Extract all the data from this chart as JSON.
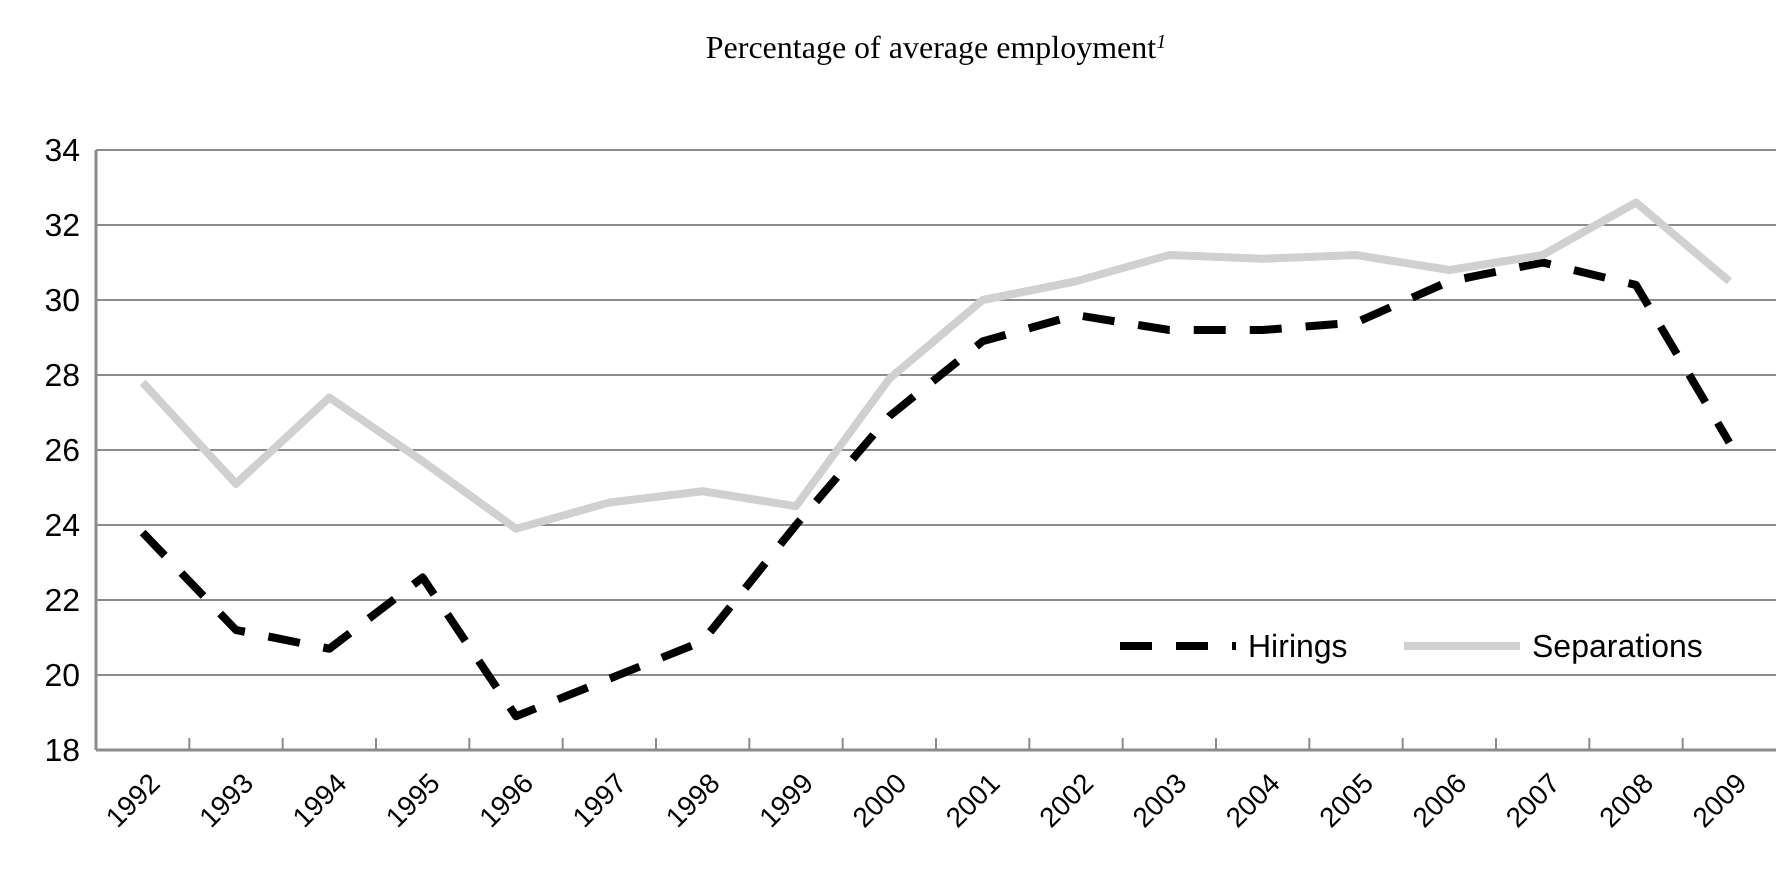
{
  "chart_data": {
    "type": "line",
    "title": "Percentage of average employment$^{1}$",
    "categories": [
      "1992",
      "1993",
      "1994",
      "1995",
      "1996",
      "1997",
      "1998",
      "1999",
      "2000",
      "2001",
      "2002",
      "2003",
      "2004",
      "2005",
      "2006",
      "2007",
      "2008",
      "2009"
    ],
    "series": [
      {
        "name": "Hirings",
        "color": "#000000",
        "line_style": "dashed",
        "values": [
          23.8,
          21.2,
          20.7,
          22.6,
          18.9,
          19.9,
          20.9,
          24.0,
          26.9,
          28.9,
          29.6,
          29.2,
          29.2,
          29.4,
          30.5,
          31.0,
          30.4,
          26.2
        ]
      },
      {
        "name": "Separations",
        "color": "#d0d0d0",
        "line_style": "solid",
        "values": [
          27.8,
          25.1,
          27.4,
          25.7,
          23.9,
          24.6,
          24.9,
          24.5,
          27.9,
          30.0,
          30.5,
          31.2,
          31.1,
          31.2,
          30.8,
          31.2,
          32.6,
          30.5
        ]
      }
    ],
    "ylim": [
      18,
      34
    ],
    "yticks": [
      18,
      20,
      22,
      24,
      26,
      28,
      30,
      32,
      34
    ],
    "grid": "y",
    "legend": "bottom right",
    "marker": "none"
  }
}
